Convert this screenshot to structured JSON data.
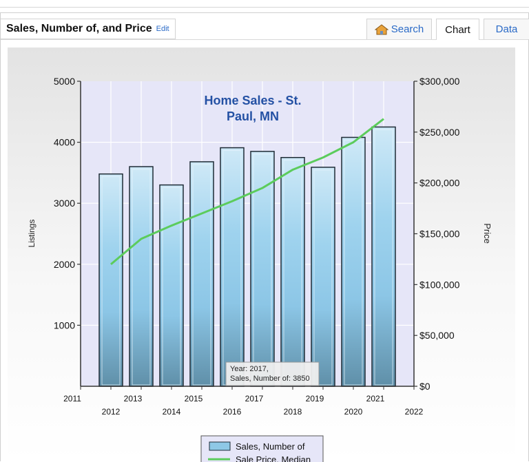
{
  "header": {
    "title": "Sales, Number of, and Price",
    "edit_label": "Edit"
  },
  "tabs": [
    {
      "label": "Search",
      "icon": "house-icon"
    },
    {
      "label": "Chart",
      "active": true
    },
    {
      "label": "Data"
    }
  ],
  "chart_data": {
    "type": "bar",
    "title": "Home Sales - St. Paul, MN",
    "title_lines": [
      "Home Sales - St.",
      "Paul, MN"
    ],
    "categories": [
      "2012",
      "2013",
      "2014",
      "2015",
      "2016",
      "2017",
      "2018",
      "2019",
      "2020",
      "2021"
    ],
    "x_ticks_top": [
      "2011",
      "2013",
      "2015",
      "2017",
      "2019",
      "2021"
    ],
    "x_ticks_bottom": [
      "2012",
      "2014",
      "2016",
      "2018",
      "2020",
      "2022"
    ],
    "ylabel": "Listings",
    "y2label": "Price",
    "ylim": [
      0,
      5000
    ],
    "y2lim": [
      0,
      300000
    ],
    "y_ticks": [
      "5000",
      "4000",
      "3000",
      "2000",
      "1000"
    ],
    "y2_ticks": [
      "$300,000",
      "$250,000",
      "$200,000",
      "$150,000",
      "$100,000",
      "$50,000",
      "$0"
    ],
    "series": [
      {
        "name": "Sales, Number of",
        "kind": "bar",
        "axis": "left",
        "color": "#8ec8e6",
        "values": [
          3480,
          3600,
          3300,
          3680,
          3910,
          3850,
          3750,
          3590,
          4080,
          4250
        ]
      },
      {
        "name": "Sale Price, Median",
        "kind": "line",
        "axis": "right",
        "color": "#5ccc5c",
        "values": [
          120000,
          145000,
          158000,
          170000,
          182000,
          195000,
          213000,
          225000,
          240000,
          263000
        ]
      }
    ],
    "grid": true,
    "legend_position": "bottom-center",
    "tooltip": {
      "lines": [
        "Year: 2017,",
        "Sales, Number of: 3850"
      ]
    },
    "colors": {
      "plot_bg": "#e6e6f8",
      "title": "#2451a4",
      "bar_border": "#1e2b35"
    }
  }
}
